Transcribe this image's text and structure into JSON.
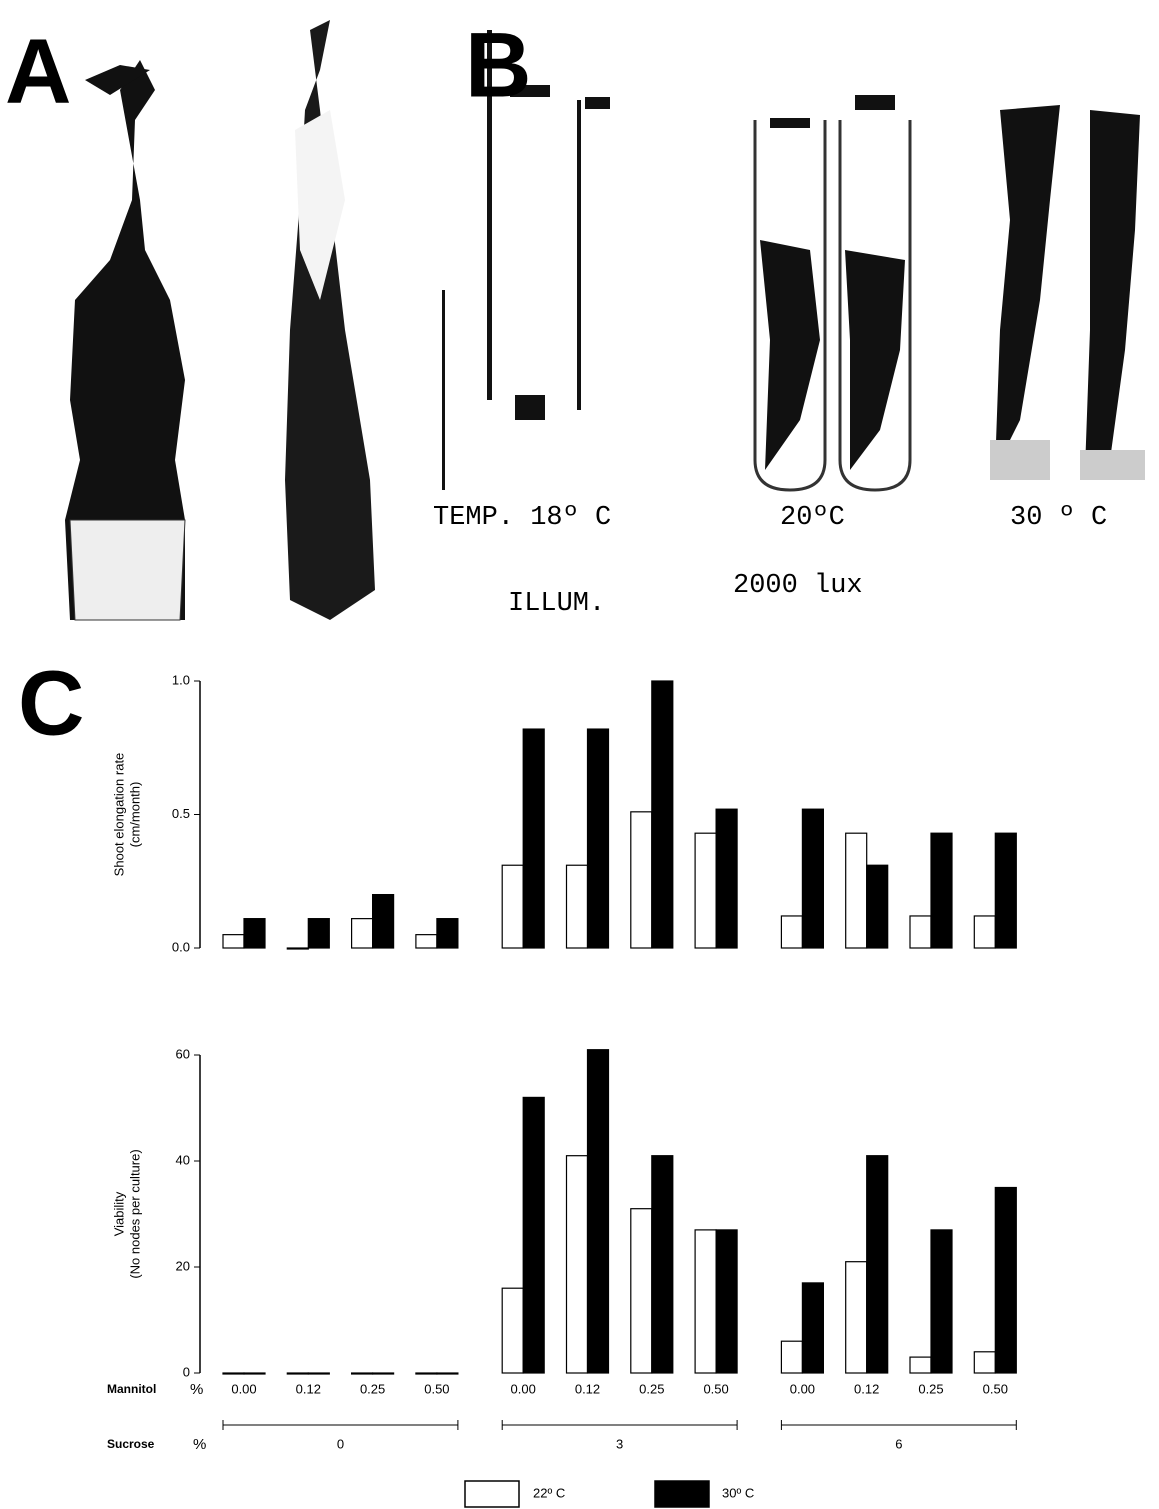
{
  "panel_labels": [
    "A",
    "B",
    "C"
  ],
  "photo_labels": {
    "temp_label": "TEMP. 18º C",
    "temp_20": "20ºC",
    "temp_30": "30 º C",
    "illum_label": "ILLUM.",
    "illum_value": "2000 lux"
  },
  "chart_data": [
    {
      "type": "bar",
      "ylabel": [
        "Shoot elongation rate",
        "(cm/month)"
      ],
      "categories": [
        null,
        null,
        null,
        null,
        null,
        null,
        null,
        null,
        null,
        null,
        null,
        null
      ],
      "series": [
        {
          "color": "#ffffff",
          "values": [
            0.05,
            0.0,
            0.11,
            0.05,
            0.31,
            0.31,
            0.51,
            0.43,
            0.12,
            0.43,
            0.12,
            0.12
          ]
        },
        {
          "color": "#000000",
          "values": [
            0.11,
            0.11,
            0.2,
            0.11,
            0.82,
            0.82,
            1.0,
            0.52,
            0.52,
            0.31,
            0.43,
            0.43
          ]
        }
      ],
      "edgecolor": "#000000",
      "ylim": [
        0,
        1.0
      ],
      "yticks": [
        {
          "value": 0,
          "label": "0.0"
        },
        {
          "value": 0.5,
          "label": "0.5"
        },
        {
          "value": 1.0,
          "label": "1.0"
        }
      ]
    },
    {
      "type": "bar",
      "ylabel": [
        "Viability",
        "(No nodes per culture)"
      ],
      "xlabel": "Mannitol",
      "xunit": "%",
      "categories": [
        "0.00",
        "0.12",
        "0.25",
        "0.50",
        "0.00",
        "0.12",
        "0.25",
        "0.50",
        "0.00",
        "0.12",
        "0.25",
        "0.50"
      ],
      "groups": [
        "0",
        "3",
        "6"
      ],
      "group_label": "Sucrose",
      "group_unit": "%",
      "series": [
        {
          "name": "22º C",
          "color": "#ffffff",
          "values": [
            0,
            0,
            0,
            0,
            16,
            41,
            31,
            27,
            6,
            21,
            3,
            4
          ]
        },
        {
          "name": "30º C",
          "color": "#000000",
          "values": [
            0,
            0,
            0,
            0,
            52,
            61,
            41,
            27,
            17,
            41,
            27,
            35
          ]
        }
      ],
      "edgecolor": "#000000",
      "ylim": [
        0,
        60
      ],
      "yticks": [
        0,
        20,
        40,
        60
      ]
    }
  ]
}
